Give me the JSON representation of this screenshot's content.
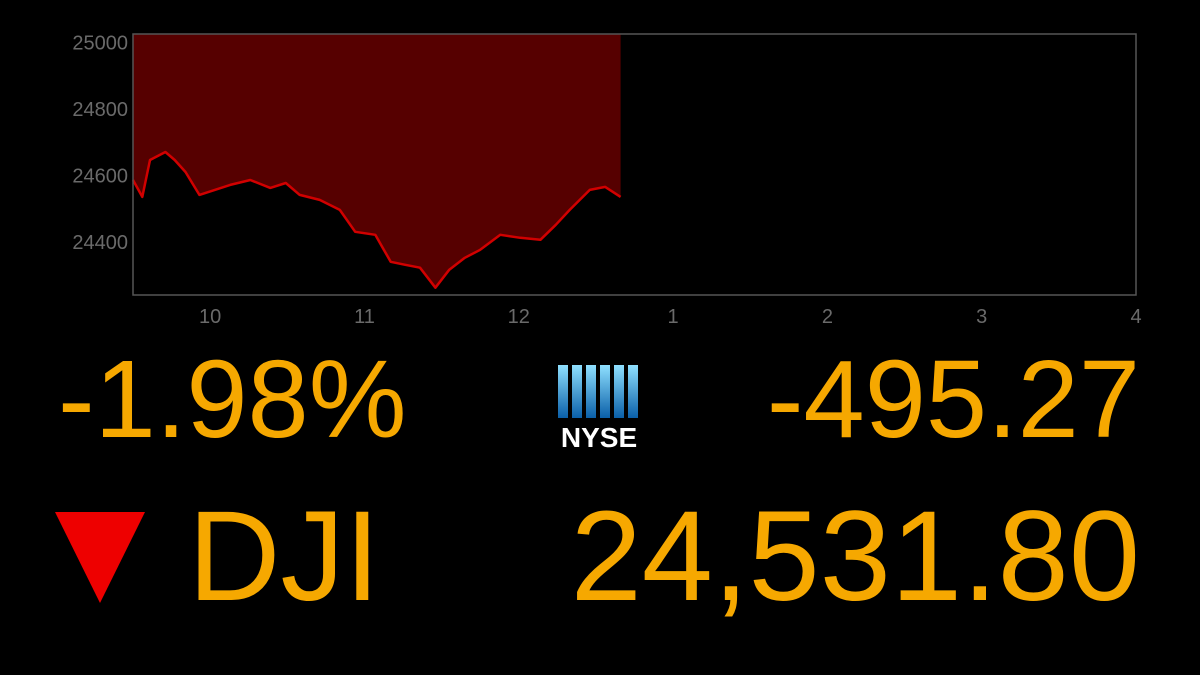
{
  "chart_data": {
    "type": "area",
    "color": "#d10000",
    "fill": "#560000",
    "grid": false,
    "x": [
      9.5,
      9.56,
      9.61,
      9.71,
      9.77,
      9.84,
      9.93,
      10.03,
      10.13,
      10.26,
      10.39,
      10.49,
      10.58,
      10.71,
      10.84,
      10.94,
      11.07,
      11.17,
      11.26,
      11.36,
      11.46,
      11.55,
      11.65,
      11.75,
      11.88,
      12.01,
      12.14,
      12.24,
      12.33,
      12.46,
      12.56,
      12.66
    ],
    "values": [
      24586,
      24535,
      24646,
      24670,
      24646,
      24610,
      24541,
      24556,
      24571,
      24586,
      24562,
      24577,
      24541,
      24526,
      24496,
      24430,
      24421,
      24340,
      24331,
      24322,
      24262,
      24316,
      24352,
      24376,
      24421,
      24412,
      24406,
      24451,
      24496,
      24556,
      24565,
      24535
    ],
    "xlim": [
      9.5,
      16
    ],
    "ylim": [
      24240,
      25025
    ],
    "xticks": [
      10,
      11,
      12,
      {
        "value": 13,
        "label": "1"
      },
      {
        "value": 14,
        "label": "2"
      },
      {
        "value": 15,
        "label": "3"
      },
      {
        "value": 16,
        "label": "4"
      }
    ],
    "yticks": [
      24400,
      24600,
      24800,
      25000
    ]
  },
  "ticker": {
    "percent_change": "-1.98%",
    "exchange": "NYSE",
    "point_change": "-495.27",
    "symbol": "DJI",
    "last": "24,531.80"
  }
}
